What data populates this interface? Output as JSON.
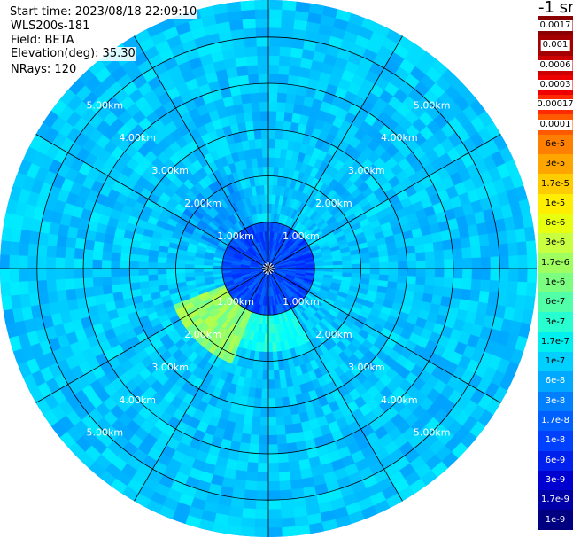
{
  "header": {
    "start_time": "Start time: 2023/08/18 22:09:10",
    "instrument": "WLS200s-181",
    "field": "Field: BETA",
    "elevation": "Elevation(deg): 35.30",
    "nrays": "NRays: 120"
  },
  "colorbar": {
    "unit_label": "-1 sr",
    "labels": [
      "0.0017",
      "0.001",
      "0.0006",
      "0.0003",
      "0.00017",
      "0.0001",
      "6e-5",
      "3e-5",
      "1.7e-5",
      "1e-5",
      "6e-6",
      "3e-6",
      "1.7e-6",
      "1e-6",
      "6e-7",
      "3e-7",
      "1.7e-7",
      "1e-7",
      "6e-8",
      "3e-8",
      "1.7e-8",
      "1e-8",
      "6e-9",
      "3e-9",
      "1.7e-9",
      "1e-9"
    ],
    "colors": [
      "#8b0000",
      "#a50000",
      "#cc0000",
      "#ee0000",
      "#ff2a00",
      "#ff5a00",
      "#ff8000",
      "#ffa500",
      "#ffcc00",
      "#ffee00",
      "#e8ff10",
      "#c8ff40",
      "#a0ff60",
      "#7cff80",
      "#50ffa8",
      "#28ffd0",
      "#00f0f0",
      "#00d0ff",
      "#00a8ff",
      "#0080ff",
      "#0060ff",
      "#0040ff",
      "#0020ee",
      "#0000d0",
      "#0000a8",
      "#000080"
    ]
  },
  "chart_data": {
    "type": "heatmap",
    "projection": "polar",
    "field": "BETA",
    "n_rays": 120,
    "elevation_deg": 35.3,
    "range_rings_km": [
      1,
      2,
      3,
      4,
      5
    ],
    "ring_labels": [
      "1.00km",
      "2.00km",
      "3.00km",
      "4.00km",
      "5.00km"
    ],
    "max_range_km": 5.8,
    "radial_lines_deg": [
      0,
      30,
      60,
      90,
      120,
      150,
      180,
      210,
      240,
      270,
      300,
      330
    ],
    "colorscale": "jet",
    "color_range": [
      1e-09,
      0.0017
    ],
    "typical_value": 1e-07,
    "regions": [
      {
        "azimuth_deg": [
          200,
          250
        ],
        "range_km": [
          0.8,
          2.2
        ],
        "value": 1.7e-06
      },
      {
        "azimuth_deg": [
          150,
          200
        ],
        "range_km": [
          0.7,
          1.9
        ],
        "value": 3e-07
      },
      {
        "azimuth_deg": [
          290,
          340
        ],
        "range_km": [
          0.7,
          2.2
        ],
        "value": 6e-08
      },
      {
        "azimuth_deg": [
          0,
          360
        ],
        "range_km": [
          0,
          1.0
        ],
        "value": 1.7e-08
      }
    ]
  }
}
